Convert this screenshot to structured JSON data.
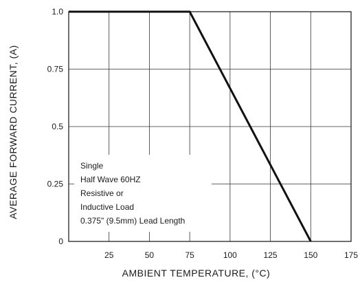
{
  "chart_data": {
    "type": "line",
    "title": "",
    "xlabel": "AMBIENT TEMPERATURE, (°C)",
    "ylabel": "AVERAGE FORWARD CURRENT, (A)",
    "x_ticks": [
      {
        "value": 25,
        "label": "25"
      },
      {
        "value": 50,
        "label": "50"
      },
      {
        "value": 75,
        "label": "75"
      },
      {
        "value": 100,
        "label": "100"
      },
      {
        "value": 125,
        "label": "125"
      },
      {
        "value": 150,
        "label": "150"
      },
      {
        "value": 175,
        "label": "175"
      }
    ],
    "y_ticks": [
      {
        "value": 0,
        "label": "0"
      },
      {
        "value": 0.25,
        "label": "0.25"
      },
      {
        "value": 0.5,
        "label": "0.5"
      },
      {
        "value": 0.75,
        "label": "0.75"
      },
      {
        "value": 1.0,
        "label": "1.0"
      }
    ],
    "xlim": [
      0,
      175
    ],
    "ylim": [
      0,
      1.0
    ],
    "grid": true,
    "series": [
      {
        "x": [
          0,
          75,
          150
        ],
        "y": [
          1.0,
          1.0,
          0
        ],
        "color": "#111111"
      }
    ],
    "annotation": {
      "lines": [
        "Single",
        "Half Wave 60HZ",
        "Resistive or",
        "Inductive Load",
        "0.375\" (9.5mm) Lead Length"
      ]
    }
  }
}
